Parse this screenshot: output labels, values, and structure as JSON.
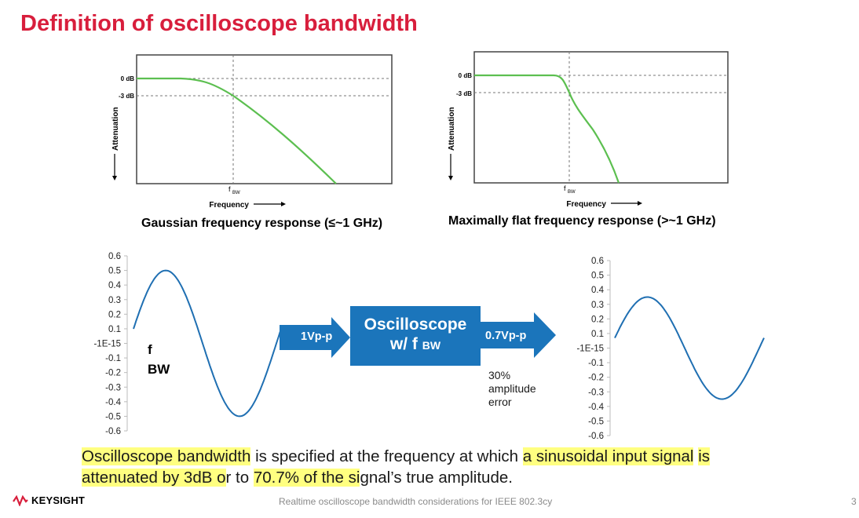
{
  "title": "Definition of oscilloscope bandwidth",
  "gaussian": {
    "caption": "Gaussian frequency response (≤~1 GHz)",
    "y_label": "Attenuation",
    "x_label": "Frequency",
    "tick_0db": "0 dB",
    "tick_3db": "-3 dB",
    "fbw_f": "f",
    "fbw_sub": "BW"
  },
  "maxflat": {
    "caption": "Maximally flat frequency response (>~1 GHz)",
    "y_label": "Attenuation",
    "x_label": "Frequency",
    "tick_0db": "0 dB",
    "tick_3db": "-3 dB",
    "fbw_f": "f",
    "fbw_sub": "BW"
  },
  "chart_data": [
    {
      "type": "line",
      "title": "",
      "y_ticks": [
        "0.6",
        "0.5",
        "0.4",
        "0.3",
        "0.2",
        "0.1",
        "-1E-15",
        "-0.1",
        "-0.2",
        "-0.3",
        "-0.4",
        "-0.5",
        "-0.6"
      ],
      "ylim": [
        -0.6,
        0.6
      ],
      "series": [
        {
          "amplitude": 0.5,
          "waveform": "sine",
          "cycles": 1
        }
      ],
      "annotation_f": "f",
      "annotation_sub": "BW"
    },
    {
      "type": "line",
      "title": "",
      "y_ticks": [
        "0.6",
        "0.5",
        "0.4",
        "0.3",
        "0.2",
        "0.1",
        "-1E-15",
        "-0.1",
        "-0.2",
        "-0.3",
        "-0.4",
        "-0.5",
        "-0.6"
      ],
      "ylim": [
        -0.6,
        0.6
      ],
      "series": [
        {
          "amplitude": 0.35,
          "waveform": "sine",
          "cycles": 1
        }
      ]
    }
  ],
  "flow": {
    "input_label": "1Vp-p",
    "box_line1": "Oscilloscope",
    "box_line2": "w/ f",
    "box_sub": "BW",
    "output_label": "0.7Vp-p",
    "error_text": "30% amplitude error"
  },
  "body": {
    "h1": "Oscilloscope bandwidth",
    "t1": " is specified at the frequency at which ",
    "h2": "a sinusoidal input signal",
    "t2": " ",
    "h3": "is attenuated by 3dB o",
    "t3": "r to ",
    "h4": "70.7% of the si",
    "t4": "gnal’s true amplitude."
  },
  "footer": {
    "logo": "KEYSIGHT",
    "center": "Realtime oscilloscope bandwidth considerations for IEEE 802.3cy",
    "page": "3"
  },
  "colors": {
    "title": "#d81e3c",
    "curve_green": "#5cbf50",
    "sine_blue": "#1f6fb2",
    "box_blue": "#1b75bb",
    "highlight": "#ffff80"
  }
}
